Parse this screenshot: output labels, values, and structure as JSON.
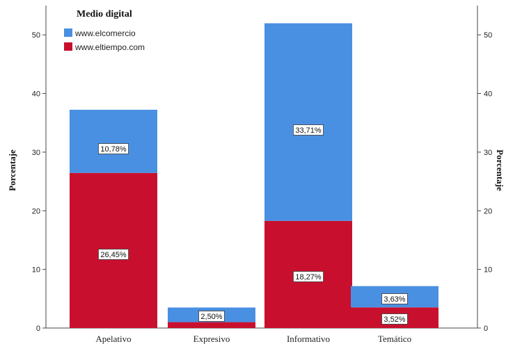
{
  "chart_data": {
    "type": "bar",
    "stacked": true,
    "categories": [
      "Apelativo",
      "Expresivo",
      "Informativo",
      "Temático"
    ],
    "series": [
      {
        "name": "www.eltiempo.com",
        "color": "#c8102e",
        "values": [
          26.45,
          1.0,
          18.27,
          3.52
        ],
        "labels": [
          "26,45%",
          "",
          "18,27%",
          "3,52%"
        ]
      },
      {
        "name": "www.elcomercio",
        "color": "#4a90e2",
        "values": [
          10.78,
          2.5,
          33.71,
          3.63
        ],
        "labels": [
          "10,78%",
          "2,50%",
          "33,71%",
          "3,63%"
        ]
      }
    ],
    "legend_title": "Medio digital",
    "legend_items": [
      "www.elcomercio",
      "www.eltiempo.com"
    ],
    "legend_placement": "top-left",
    "ylabel": "Porcentaje",
    "ylabel_right": "Porcentaje",
    "ylim": [
      0,
      55
    ],
    "yticks": [
      0,
      10,
      20,
      30,
      40,
      50
    ],
    "grid": false
  }
}
